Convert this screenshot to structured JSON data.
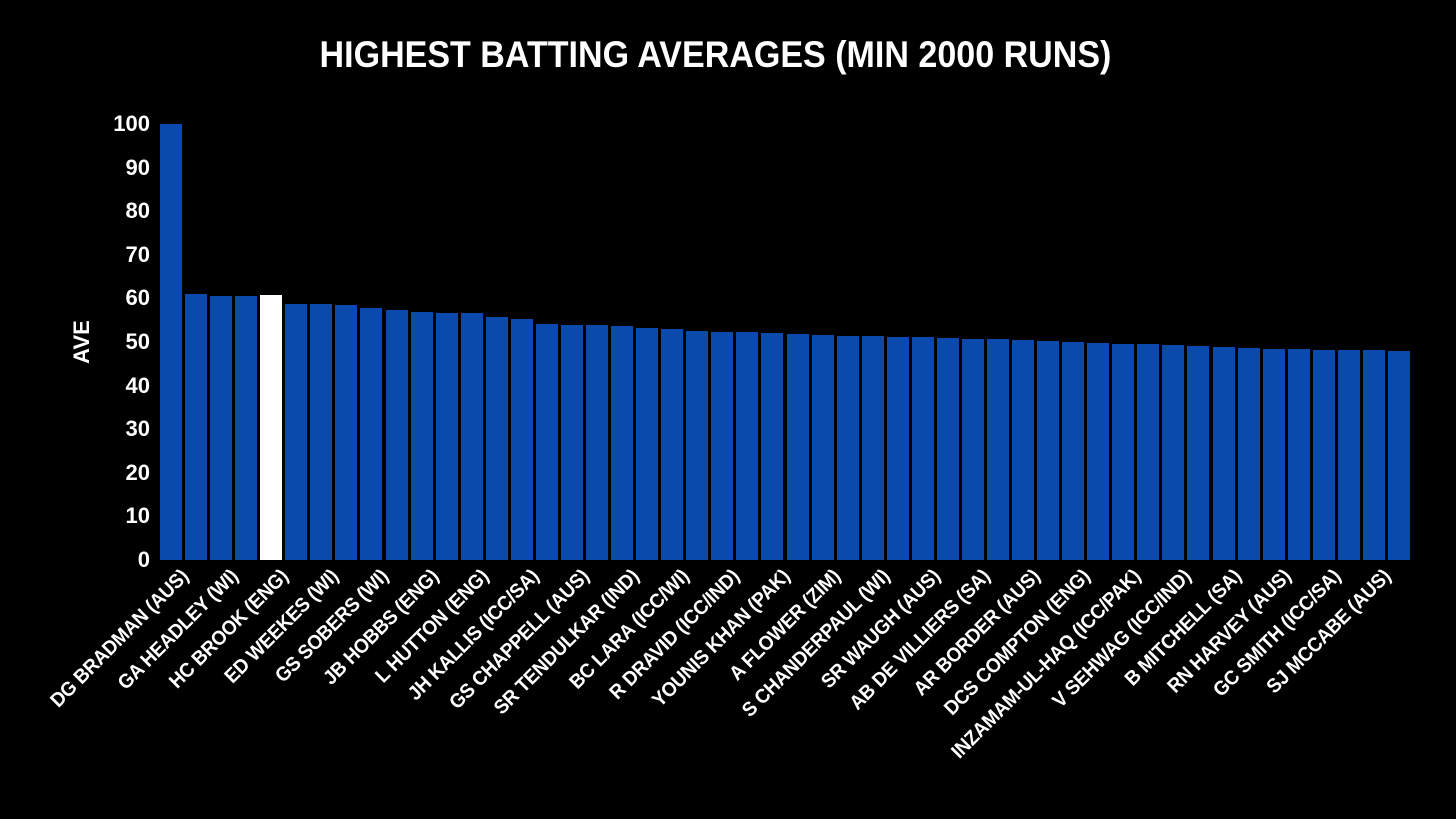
{
  "title": {
    "text": "HIGHEST BATTING AVERAGES (MIN 2000 RUNS)"
  },
  "colors": {
    "background": "#000000",
    "bar": "#0A4AAC",
    "highlight_bar": "#FFFFFF",
    "text": "#FFFFFF"
  },
  "chart_data": {
    "type": "bar",
    "title": "HIGHEST BATTING AVERAGES (MIN 2000 RUNS)",
    "xlabel": "",
    "ylabel": "AVE",
    "ylim": [
      0,
      100
    ],
    "yticks": [
      0,
      10,
      20,
      30,
      40,
      50,
      60,
      70,
      80,
      90,
      100
    ],
    "grid": false,
    "legend": false,
    "bar_count": 50,
    "values": [
      99.94,
      61.0,
      60.6,
      60.5,
      60.88,
      58.67,
      58.61,
      58.45,
      57.78,
      57.4,
      56.94,
      56.68,
      56.67,
      55.8,
      55.37,
      54.1,
      53.86,
      53.81,
      53.78,
      53.3,
      52.88,
      52.6,
      52.31,
      52.2,
      52.05,
      51.8,
      51.54,
      51.45,
      51.37,
      51.2,
      51.06,
      50.9,
      50.66,
      50.6,
      50.56,
      50.3,
      50.06,
      49.8,
      49.6,
      49.5,
      49.34,
      49.1,
      48.88,
      48.6,
      48.41,
      48.3,
      48.25,
      48.23,
      48.21,
      47.9
    ],
    "highlight": {
      "bar_index": 4,
      "label": "HC BROOK (ENG)",
      "color": "#FFFFFF"
    },
    "xtick_every": 2,
    "xticks": [
      {
        "label": "DG BRADMAN (AUS)",
        "bar_index": 0
      },
      {
        "label": "GA HEADLEY (WI)",
        "bar_index": 2
      },
      {
        "label": "HC BROOK (ENG)",
        "bar_index": 4
      },
      {
        "label": "ED WEEKES (WI)",
        "bar_index": 6
      },
      {
        "label": "GS SOBERS (WI)",
        "bar_index": 8
      },
      {
        "label": "JB HOBBS (ENG)",
        "bar_index": 10
      },
      {
        "label": "L HUTTON (ENG)",
        "bar_index": 12
      },
      {
        "label": "JH KALLIS (ICC/SA)",
        "bar_index": 14
      },
      {
        "label": "GS CHAPPELL (AUS)",
        "bar_index": 16
      },
      {
        "label": "SR TENDULKAR (IND)",
        "bar_index": 18
      },
      {
        "label": "BC LARA (ICC/WI)",
        "bar_index": 20
      },
      {
        "label": "R DRAVID (ICC/IND)",
        "bar_index": 22
      },
      {
        "label": "YOUNIS KHAN (PAK)",
        "bar_index": 24
      },
      {
        "label": "A FLOWER (ZIM)",
        "bar_index": 26
      },
      {
        "label": "S CHANDERPAUL (WI)",
        "bar_index": 28
      },
      {
        "label": "SR WAUGH (AUS)",
        "bar_index": 30
      },
      {
        "label": "AB DE VILLIERS (SA)",
        "bar_index": 32
      },
      {
        "label": "AR BORDER (AUS)",
        "bar_index": 34
      },
      {
        "label": "DCS COMPTON (ENG)",
        "bar_index": 36
      },
      {
        "label": "INZAMAM-UL-HAQ (ICC/PAK)",
        "bar_index": 38
      },
      {
        "label": "V SEHWAG (ICC/IND)",
        "bar_index": 40
      },
      {
        "label": "B MITCHELL (SA)",
        "bar_index": 42
      },
      {
        "label": "RN HARVEY (AUS)",
        "bar_index": 44
      },
      {
        "label": "GC SMITH (ICC/SA)",
        "bar_index": 46
      },
      {
        "label": "SJ MCCABE (AUS)",
        "bar_index": 48
      }
    ]
  }
}
